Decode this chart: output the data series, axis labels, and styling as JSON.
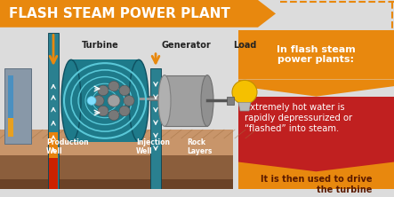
{
  "title": "FLASH STEAM POWER PLANT",
  "title_color": "#FFFFFF",
  "title_bg_color": "#E8880E",
  "bg_color": "#DCDCDC",
  "orange_color": "#E8880E",
  "dark_red_color": "#C02020",
  "yellow_color": "#F5C000",
  "teal_color": "#1E7A8A",
  "teal_light": "#5AC8D8",
  "teal_dark": "#0F5060",
  "turbine_label": "Turbine",
  "generator_label": "Generator",
  "load_label": "Load",
  "production_well_label": "Production\nWell",
  "injection_well_label": "Injection\nWell",
  "rock_layers_label": "Rock\nLayers",
  "info_header": "In flash steam\npower plants:",
  "info_text1": "Extremely hot water is\nrapidly depressurized or\n“flashed” into steam.",
  "info_text2": "It is then used to drive\nthe turbine",
  "ground_light": "#B8875A",
  "ground_mid": "#8B5E3C",
  "ground_dark": "#6B4226",
  "well_blue": "#1A6080",
  "well_teal": "#2A8090"
}
